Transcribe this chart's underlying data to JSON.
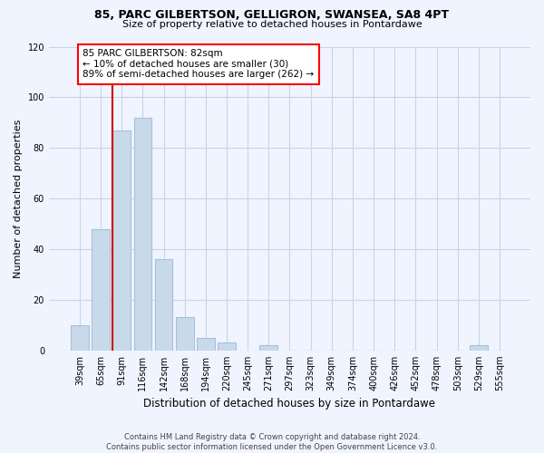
{
  "title": "85, PARC GILBERTSON, GELLIGRON, SWANSEA, SA8 4PT",
  "subtitle": "Size of property relative to detached houses in Pontardawe",
  "xlabel": "Distribution of detached houses by size in Pontardawe",
  "ylabel": "Number of detached properties",
  "bar_labels": [
    "39sqm",
    "65sqm",
    "91sqm",
    "116sqm",
    "142sqm",
    "168sqm",
    "194sqm",
    "220sqm",
    "245sqm",
    "271sqm",
    "297sqm",
    "323sqm",
    "349sqm",
    "374sqm",
    "400sqm",
    "426sqm",
    "452sqm",
    "478sqm",
    "503sqm",
    "529sqm",
    "555sqm"
  ],
  "bar_values": [
    10,
    48,
    87,
    92,
    36,
    13,
    5,
    3,
    0,
    2,
    0,
    0,
    0,
    0,
    0,
    0,
    0,
    0,
    0,
    2,
    0
  ],
  "bar_color": "#c8daea",
  "bar_edge_color": "#a8c0d8",
  "marker_color": "#cc0000",
  "annotation_title": "85 PARC GILBERTSON: 82sqm",
  "annotation_line1": "← 10% of detached houses are smaller (30)",
  "annotation_line2": "89% of semi-detached houses are larger (262) →",
  "ylim": [
    0,
    120
  ],
  "yticks": [
    0,
    20,
    40,
    60,
    80,
    100,
    120
  ],
  "footer_line1": "Contains HM Land Registry data © Crown copyright and database right 2024.",
  "footer_line2": "Contains public sector information licensed under the Open Government Licence v3.0.",
  "background_color": "#f0f4ff",
  "grid_color": "#c8d4e8"
}
